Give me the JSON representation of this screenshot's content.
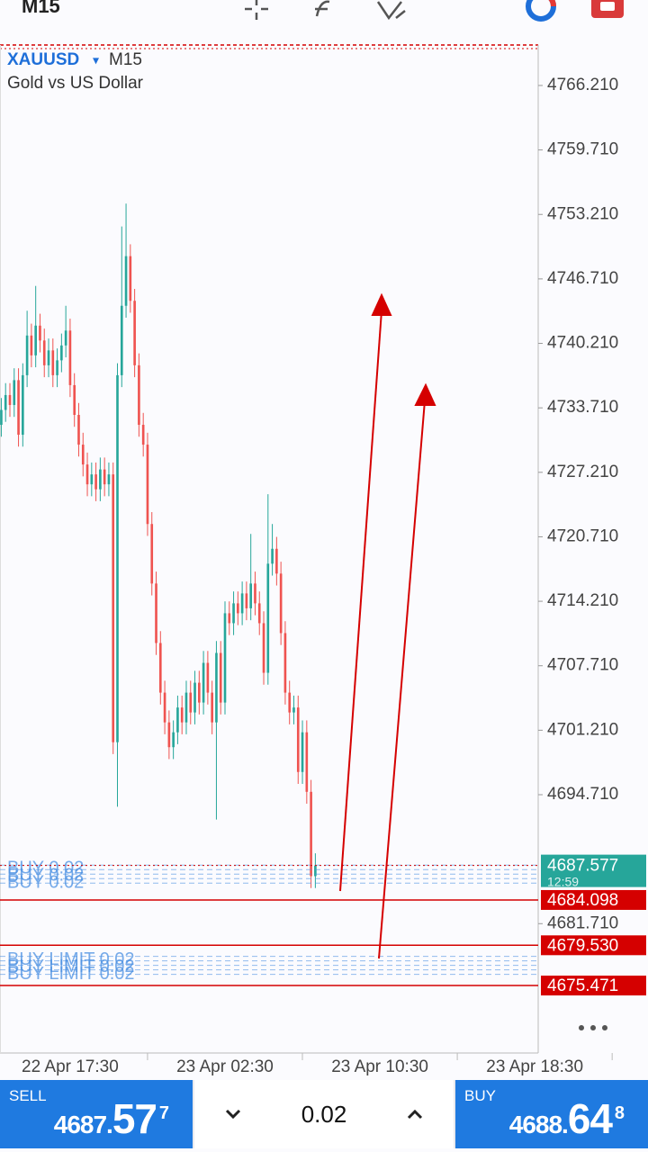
{
  "header": {
    "timeframe": "M15"
  },
  "chart_data": {
    "type": "candlestick",
    "symbol": "XAUUSD",
    "symbol_menu": "▾",
    "timeframe": "M15",
    "subtitle": "Gold vs US Dollar",
    "up_color": "#26a69a",
    "down_color": "#ef5350",
    "x": [
      0,
      1,
      2,
      3,
      4,
      5,
      6,
      7,
      8,
      9,
      10,
      11,
      12,
      13,
      14,
      15,
      16,
      17,
      18,
      19,
      20,
      21,
      22,
      23,
      24,
      25,
      26,
      27,
      28,
      29,
      30,
      31,
      32,
      33,
      34,
      35,
      36,
      37,
      38,
      39,
      40,
      41,
      42,
      43,
      44,
      45,
      46,
      47,
      48,
      49,
      50,
      51,
      52,
      53,
      54,
      55,
      56,
      57,
      58,
      59,
      60,
      61,
      62,
      63,
      64,
      65,
      66,
      67,
      68,
      69,
      70,
      71,
      72,
      73
    ],
    "open": [
      4732,
      4733.5,
      4735,
      4734,
      4736.5,
      4731,
      4737,
      4741,
      4739,
      4742,
      4740.5,
      4738,
      4739.5,
      4737,
      4738.5,
      4740,
      4741.5,
      4736,
      4733,
      4730,
      4728,
      4726,
      4727,
      4725.5,
      4727.5,
      4726,
      4727,
      4700,
      4737,
      4744,
      4749,
      4744.5,
      4738,
      4732,
      4730,
      4722,
      4716,
      4710,
      4705,
      4702,
      4699.5,
      4701,
      4703.5,
      4702,
      4705,
      4703,
      4706,
      4704,
      4708,
      4705,
      4702,
      4709,
      4704,
      4713,
      4712,
      4714,
      4713,
      4715,
      4713.5,
      4716,
      4714,
      4712,
      4707,
      4718,
      4719.5,
      4717,
      4711,
      4705,
      4703,
      4703.5,
      4697,
      4701,
      4695,
      4686.5
    ],
    "high": [
      4734.7,
      4736.2,
      4736.2,
      4737.7,
      4737.7,
      4738.2,
      4743.5,
      4742.2,
      4746,
      4743.2,
      4741.7,
      4740.7,
      4740.7,
      4739.7,
      4741.2,
      4744,
      4742.7,
      4737.2,
      4734.2,
      4731.2,
      4729.2,
      4728.2,
      4728.2,
      4728.7,
      4728.7,
      4728.2,
      4728.2,
      4738.2,
      4752,
      4754.3,
      4750.2,
      4745.7,
      4739.2,
      4733.2,
      4731.2,
      4723.2,
      4717.2,
      4711.2,
      4706.2,
      4703.2,
      4702.2,
      4704.7,
      4704.7,
      4706.2,
      4706.2,
      4707.2,
      4707.2,
      4709.2,
      4709.2,
      4706.2,
      4710.2,
      4710.2,
      4714.2,
      4714.2,
      4715.2,
      4715.2,
      4716.2,
      4716.2,
      4721,
      4717.2,
      4715.2,
      4713.2,
      4725,
      4722,
      4720.7,
      4718.2,
      4712.2,
      4706.2,
      4704.7,
      4704.7,
      4702.2,
      4702.2,
      4696.2,
      4688.8
    ],
    "low": [
      4730.8,
      4732.3,
      4732.8,
      4732.8,
      4729.8,
      4729.8,
      4735.8,
      4737.8,
      4737.8,
      4739.3,
      4736.8,
      4736.8,
      4735.8,
      4735.8,
      4737.3,
      4738.8,
      4734.8,
      4731.8,
      4728.8,
      4726.8,
      4724.8,
      4724.8,
      4724.3,
      4724.3,
      4724.8,
      4724.8,
      4698.8,
      4693.5,
      4735.8,
      4742.8,
      4743.3,
      4736.8,
      4730.8,
      4728.8,
      4720.8,
      4714.8,
      4708.8,
      4703.8,
      4700.8,
      4698.3,
      4698.3,
      4699.8,
      4700.8,
      4700.8,
      4701.8,
      4701.8,
      4702.8,
      4702.8,
      4703.8,
      4700.8,
      4692.2,
      4702.8,
      4702.8,
      4710.8,
      4710.8,
      4711.8,
      4711.8,
      4712.3,
      4712.3,
      4712.8,
      4710.8,
      4705.8,
      4705.8,
      4716.8,
      4715.8,
      4709.8,
      4703.8,
      4701.8,
      4701.8,
      4695.8,
      4695.8,
      4693.8,
      4685.3,
      4685.3
    ],
    "close": [
      4733.5,
      4735,
      4734,
      4736.5,
      4731,
      4737,
      4741,
      4739,
      4742,
      4740.5,
      4738,
      4739.5,
      4737,
      4738.5,
      4740,
      4741.5,
      4736,
      4733,
      4730,
      4728,
      4726,
      4727,
      4725.5,
      4727.5,
      4726,
      4727,
      4700,
      4737,
      4744,
      4749,
      4744.5,
      4738,
      4732,
      4730,
      4722,
      4716,
      4710,
      4705,
      4702,
      4699.5,
      4701,
      4703.5,
      4702,
      4705,
      4703,
      4706,
      4704,
      4708,
      4705,
      4702,
      4709,
      4704,
      4713,
      4712,
      4714,
      4713,
      4715,
      4713.5,
      4716,
      4714,
      4712,
      4707,
      4718,
      4719.5,
      4717,
      4711,
      4705,
      4703,
      4703.5,
      4697,
      4701,
      4695,
      4686.5,
      4687.577
    ],
    "xlim": [
      -0.3,
      124.8
    ],
    "xticks": [
      {
        "value": 16,
        "label": "22 Apr 17:30"
      },
      {
        "value": 52,
        "label": "23 Apr 02:30"
      },
      {
        "value": 88,
        "label": "23 Apr 10:30"
      },
      {
        "value": 124,
        "label": "23 Apr 18:30"
      }
    ],
    "ylim": [
      4668.67,
      4770.29
    ],
    "yticks": [
      {
        "value": 4766.21,
        "label": "4766.210"
      },
      {
        "value": 4759.71,
        "label": "4759.710"
      },
      {
        "value": 4753.21,
        "label": "4753.210"
      },
      {
        "value": 4746.71,
        "label": "4746.710"
      },
      {
        "value": 4740.21,
        "label": "4740.210"
      },
      {
        "value": 4733.71,
        "label": "4733.710"
      },
      {
        "value": 4727.21,
        "label": "4727.210"
      },
      {
        "value": 4720.71,
        "label": "4720.710"
      },
      {
        "value": 4714.21,
        "label": "4714.210"
      },
      {
        "value": 4707.71,
        "label": "4707.710"
      },
      {
        "value": 4701.21,
        "label": "4701.210"
      },
      {
        "value": 4694.71,
        "label": "4694.710"
      },
      {
        "value": 4681.71,
        "label": "4681.710"
      }
    ],
    "current_price": 4687.577,
    "current_color": "#26a69a",
    "countdown": "12:59",
    "levels": [
      4684.098,
      {
        "value": 4679.53,
        "label": "4679.530"
      },
      4675.471
    ],
    "level_color": "#d50000",
    "orders": [
      {
        "text": "BUY 0.02",
        "value": 4686.7
      },
      {
        "text": "BUY LIMIT 0.02",
        "value": 4677.5
      }
    ],
    "order_color": "#4a90e2"
  },
  "trade_bar": {
    "sell_label": "SELL",
    "sell_price_main": "4687.",
    "sell_price_big": "57",
    "sell_price_sup": "7",
    "volume": "0.02",
    "buy_label": "BUY",
    "buy_price_main": "4688.",
    "buy_price_big": "64",
    "buy_price_sup": "8"
  }
}
